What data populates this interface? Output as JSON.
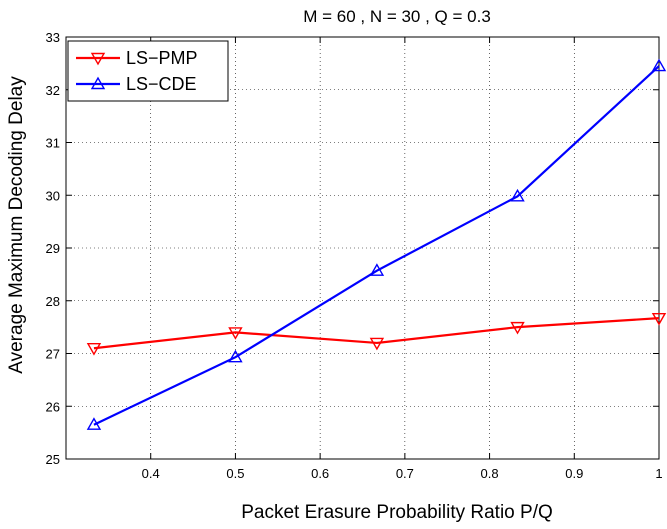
{
  "chart_data": {
    "type": "line",
    "title": "M = 60 , N = 30 , Q = 0.3",
    "xlabel": "Packet Erasure Probability Ratio P/Q",
    "ylabel": "Average Maximum Decoding Delay",
    "xlim": [
      0.3,
      1.0
    ],
    "ylim": [
      25,
      33
    ],
    "xticks": [
      0.4,
      0.5,
      0.6,
      0.7,
      0.8,
      0.9,
      1.0
    ],
    "xtick_labels": [
      "0.4",
      "0.5",
      "0.6",
      "0.7",
      "0.8",
      "0.9",
      "1"
    ],
    "yticks": [
      25,
      26,
      27,
      28,
      29,
      30,
      31,
      32,
      33
    ],
    "ytick_labels": [
      "25",
      "26",
      "27",
      "28",
      "29",
      "30",
      "31",
      "32",
      "33"
    ],
    "grid": true,
    "legend_position": "top-left",
    "series": [
      {
        "name": "LS−PMP",
        "color": "#ff0000",
        "marker": "triangle-down",
        "x": [
          0.333,
          0.5,
          0.667,
          0.833,
          1.0
        ],
        "y": [
          27.1,
          27.4,
          27.2,
          27.5,
          27.67
        ]
      },
      {
        "name": "LS−CDE",
        "color": "#0000ff",
        "marker": "triangle-up",
        "x": [
          0.333,
          0.5,
          0.667,
          0.833,
          1.0
        ],
        "y": [
          25.65,
          26.93,
          28.57,
          29.98,
          32.45
        ]
      }
    ]
  }
}
